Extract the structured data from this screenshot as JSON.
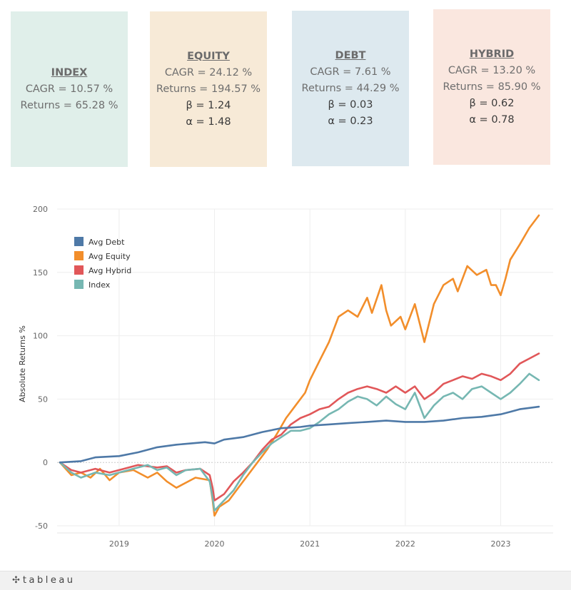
{
  "cards": {
    "index": {
      "title": "INDEX",
      "cagr": "CAGR = 10.57 %",
      "returns": "Returns = 65.28 %",
      "color": "#e0efea"
    },
    "equity": {
      "title": "EQUITY",
      "cagr": "CAGR = 24.12 %",
      "returns": "Returns = 194.57 %",
      "beta": "β = 1.24",
      "alpha": "α = 1.48",
      "color": "#f7ead7"
    },
    "debt": {
      "title": "DEBT",
      "cagr": "CAGR = 7.61 %",
      "returns": "Returns = 44.29 %",
      "beta": "β = 0.03",
      "alpha": "α = 0.23",
      "color": "#dde9ef"
    },
    "hybrid": {
      "title": "HYBRID",
      "cagr": "CAGR = 13.20 %",
      "returns": "Returns = 85.90 %",
      "beta": "β = 0.62",
      "alpha": "α = 0.78",
      "color": "#fae7df"
    }
  },
  "chart_data": {
    "type": "line",
    "title": "",
    "xlabel": "",
    "ylabel": "Absolute Returns %",
    "ylim": [
      -50,
      200
    ],
    "yticks": [
      -50,
      0,
      50,
      100,
      150,
      200
    ],
    "xlim": [
      2018.35,
      2023.55
    ],
    "xticks": [
      {
        "label": "2019",
        "value": 2019.0
      },
      {
        "label": "2020",
        "value": 2020.0
      },
      {
        "label": "2021",
        "value": 2021.0
      },
      {
        "label": "2022",
        "value": 2022.0
      },
      {
        "label": "2023",
        "value": 2023.0
      }
    ],
    "grid": true,
    "legend": "top-left",
    "series": [
      {
        "name": "Avg Debt",
        "color": "#4e79a7",
        "points": [
          [
            2018.38,
            0
          ],
          [
            2018.6,
            1
          ],
          [
            2018.75,
            4
          ],
          [
            2019.0,
            5
          ],
          [
            2019.2,
            8
          ],
          [
            2019.4,
            12
          ],
          [
            2019.6,
            14
          ],
          [
            2019.75,
            15
          ],
          [
            2019.9,
            16
          ],
          [
            2020.0,
            15
          ],
          [
            2020.1,
            18
          ],
          [
            2020.3,
            20
          ],
          [
            2020.5,
            24
          ],
          [
            2020.7,
            27
          ],
          [
            2020.9,
            28
          ],
          [
            2021.0,
            29
          ],
          [
            2021.2,
            30
          ],
          [
            2021.4,
            31
          ],
          [
            2021.6,
            32
          ],
          [
            2021.8,
            33
          ],
          [
            2022.0,
            32
          ],
          [
            2022.2,
            32
          ],
          [
            2022.4,
            33
          ],
          [
            2022.6,
            35
          ],
          [
            2022.8,
            36
          ],
          [
            2023.0,
            38
          ],
          [
            2023.1,
            40
          ],
          [
            2023.2,
            42
          ],
          [
            2023.4,
            44
          ]
        ]
      },
      {
        "name": "Avg Equity",
        "color": "#f28e2b",
        "points": [
          [
            2018.38,
            0
          ],
          [
            2018.5,
            -10
          ],
          [
            2018.6,
            -8
          ],
          [
            2018.7,
            -12
          ],
          [
            2018.8,
            -5
          ],
          [
            2018.9,
            -14
          ],
          [
            2019.0,
            -8
          ],
          [
            2019.15,
            -6
          ],
          [
            2019.3,
            -12
          ],
          [
            2019.4,
            -8
          ],
          [
            2019.5,
            -15
          ],
          [
            2019.6,
            -20
          ],
          [
            2019.7,
            -16
          ],
          [
            2019.8,
            -12
          ],
          [
            2019.95,
            -14
          ],
          [
            2019.98,
            -30
          ],
          [
            2020.0,
            -42
          ],
          [
            2020.05,
            -35
          ],
          [
            2020.15,
            -30
          ],
          [
            2020.25,
            -20
          ],
          [
            2020.35,
            -10
          ],
          [
            2020.45,
            0
          ],
          [
            2020.55,
            10
          ],
          [
            2020.65,
            22
          ],
          [
            2020.75,
            35
          ],
          [
            2020.85,
            45
          ],
          [
            2020.95,
            55
          ],
          [
            2021.0,
            65
          ],
          [
            2021.1,
            80
          ],
          [
            2021.2,
            95
          ],
          [
            2021.3,
            115
          ],
          [
            2021.4,
            120
          ],
          [
            2021.5,
            115
          ],
          [
            2021.6,
            130
          ],
          [
            2021.65,
            118
          ],
          [
            2021.75,
            140
          ],
          [
            2021.8,
            120
          ],
          [
            2021.85,
            108
          ],
          [
            2021.95,
            115
          ],
          [
            2022.0,
            105
          ],
          [
            2022.1,
            125
          ],
          [
            2022.2,
            95
          ],
          [
            2022.3,
            125
          ],
          [
            2022.4,
            140
          ],
          [
            2022.5,
            145
          ],
          [
            2022.55,
            135
          ],
          [
            2022.65,
            155
          ],
          [
            2022.75,
            148
          ],
          [
            2022.85,
            152
          ],
          [
            2022.9,
            140
          ],
          [
            2022.95,
            140
          ],
          [
            2023.0,
            132
          ],
          [
            2023.05,
            145
          ],
          [
            2023.1,
            160
          ],
          [
            2023.2,
            172
          ],
          [
            2023.3,
            185
          ],
          [
            2023.4,
            195
          ]
        ]
      },
      {
        "name": "Avg Hybrid",
        "color": "#e15759",
        "points": [
          [
            2018.38,
            0
          ],
          [
            2018.5,
            -6
          ],
          [
            2018.6,
            -8
          ],
          [
            2018.75,
            -5
          ],
          [
            2018.9,
            -8
          ],
          [
            2019.0,
            -6
          ],
          [
            2019.2,
            -2
          ],
          [
            2019.4,
            -4
          ],
          [
            2019.5,
            -3
          ],
          [
            2019.6,
            -8
          ],
          [
            2019.7,
            -6
          ],
          [
            2019.85,
            -5
          ],
          [
            2019.95,
            -10
          ],
          [
            2019.98,
            -20
          ],
          [
            2020.0,
            -30
          ],
          [
            2020.1,
            -25
          ],
          [
            2020.2,
            -15
          ],
          [
            2020.3,
            -8
          ],
          [
            2020.4,
            0
          ],
          [
            2020.5,
            10
          ],
          [
            2020.6,
            18
          ],
          [
            2020.7,
            22
          ],
          [
            2020.8,
            30
          ],
          [
            2020.9,
            35
          ],
          [
            2021.0,
            38
          ],
          [
            2021.1,
            42
          ],
          [
            2021.2,
            44
          ],
          [
            2021.3,
            50
          ],
          [
            2021.4,
            55
          ],
          [
            2021.5,
            58
          ],
          [
            2021.6,
            60
          ],
          [
            2021.7,
            58
          ],
          [
            2021.8,
            55
          ],
          [
            2021.9,
            60
          ],
          [
            2022.0,
            55
          ],
          [
            2022.1,
            60
          ],
          [
            2022.2,
            50
          ],
          [
            2022.3,
            55
          ],
          [
            2022.4,
            62
          ],
          [
            2022.5,
            65
          ],
          [
            2022.6,
            68
          ],
          [
            2022.7,
            66
          ],
          [
            2022.8,
            70
          ],
          [
            2022.9,
            68
          ],
          [
            2023.0,
            65
          ],
          [
            2023.1,
            70
          ],
          [
            2023.2,
            78
          ],
          [
            2023.3,
            82
          ],
          [
            2023.4,
            86
          ]
        ]
      },
      {
        "name": "Index",
        "color": "#76b7b2",
        "points": [
          [
            2018.38,
            0
          ],
          [
            2018.5,
            -8
          ],
          [
            2018.6,
            -12
          ],
          [
            2018.75,
            -8
          ],
          [
            2018.9,
            -10
          ],
          [
            2019.0,
            -8
          ],
          [
            2019.2,
            -4
          ],
          [
            2019.3,
            -2
          ],
          [
            2019.4,
            -6
          ],
          [
            2019.5,
            -4
          ],
          [
            2019.6,
            -10
          ],
          [
            2019.7,
            -6
          ],
          [
            2019.85,
            -5
          ],
          [
            2019.95,
            -15
          ],
          [
            2019.98,
            -28
          ],
          [
            2020.0,
            -38
          ],
          [
            2020.1,
            -30
          ],
          [
            2020.2,
            -22
          ],
          [
            2020.3,
            -10
          ],
          [
            2020.4,
            0
          ],
          [
            2020.5,
            8
          ],
          [
            2020.6,
            15
          ],
          [
            2020.7,
            20
          ],
          [
            2020.8,
            25
          ],
          [
            2020.9,
            25
          ],
          [
            2021.0,
            27
          ],
          [
            2021.1,
            32
          ],
          [
            2021.2,
            38
          ],
          [
            2021.3,
            42
          ],
          [
            2021.4,
            48
          ],
          [
            2021.5,
            52
          ],
          [
            2021.6,
            50
          ],
          [
            2021.7,
            45
          ],
          [
            2021.8,
            52
          ],
          [
            2021.9,
            46
          ],
          [
            2022.0,
            42
          ],
          [
            2022.1,
            55
          ],
          [
            2022.2,
            35
          ],
          [
            2022.3,
            45
          ],
          [
            2022.4,
            52
          ],
          [
            2022.5,
            55
          ],
          [
            2022.6,
            50
          ],
          [
            2022.7,
            58
          ],
          [
            2022.8,
            60
          ],
          [
            2022.9,
            55
          ],
          [
            2023.0,
            50
          ],
          [
            2023.1,
            55
          ],
          [
            2023.2,
            62
          ],
          [
            2023.3,
            70
          ],
          [
            2023.4,
            65
          ]
        ]
      }
    ]
  },
  "footer": {
    "logo_text": "tableau",
    "logo_mark": "✣"
  }
}
